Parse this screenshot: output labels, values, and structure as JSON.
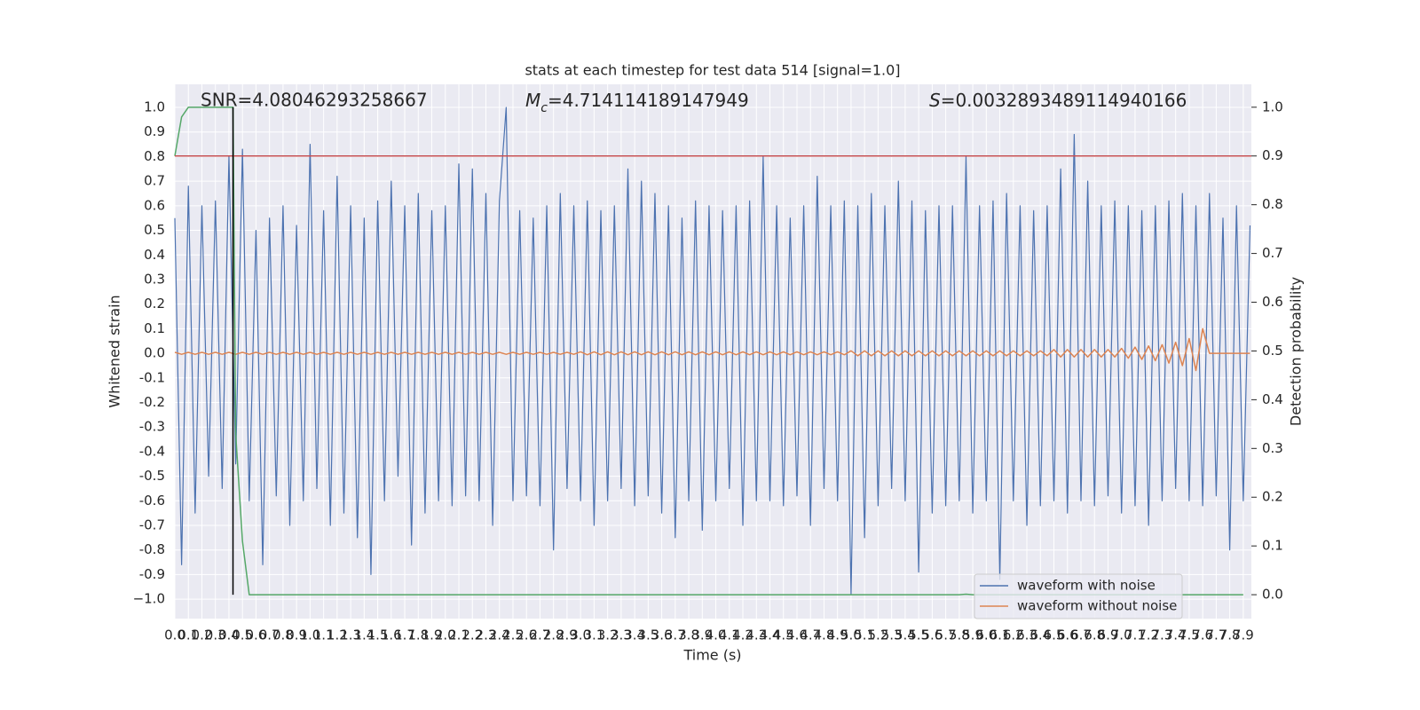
{
  "chart_data": {
    "type": "line",
    "title": "stats at each timestep for test data 514 [signal=1.0]",
    "xlabel": "Time (s)",
    "ylabel": "Whitened strain",
    "y2label": "Detection probability",
    "grid": true,
    "legend": "lower right",
    "xlim": [
      0,
      7.96
    ],
    "ylim": [
      -1.079,
      1.094
    ],
    "y2lim": [
      -0.049,
      1.047
    ],
    "xticks": [
      {
        "value": 0,
        "label": "0.0"
      },
      0.1,
      0.2,
      0.3,
      0.4,
      0.5,
      0.6,
      0.7,
      0.8,
      0.9,
      {
        "value": 1,
        "label": "1.0"
      },
      1.1,
      1.2,
      1.3,
      1.4,
      1.5,
      1.6,
      1.7,
      1.8,
      1.9,
      {
        "value": 2,
        "label": "2.0"
      },
      2.1,
      2.2,
      2.3,
      2.4,
      2.5,
      2.6,
      2.7,
      2.8,
      2.9,
      {
        "value": 3,
        "label": "3.0"
      },
      3.1,
      3.2,
      3.3,
      3.4,
      3.5,
      3.6,
      3.7,
      3.8,
      3.9,
      {
        "value": 4,
        "label": "4.0"
      },
      4.1,
      4.2,
      4.3,
      4.4,
      4.5,
      4.6,
      4.7,
      4.8,
      4.9,
      {
        "value": 5,
        "label": "5.0"
      },
      5.1,
      5.2,
      5.3,
      5.4,
      5.5,
      5.6,
      5.7,
      5.8,
      5.9,
      {
        "value": 6,
        "label": "6.0"
      },
      6.1,
      6.2,
      6.3,
      6.4,
      6.5,
      6.6,
      6.7,
      6.8,
      6.9,
      {
        "value": 7,
        "label": "7.0"
      },
      7.1,
      7.2,
      7.3,
      7.4,
      7.5,
      7.6,
      7.7,
      7.8,
      7.9
    ],
    "yticks": [
      {
        "value": -1,
        "label": "−1.0"
      },
      -0.9,
      -0.8,
      -0.7,
      -0.6,
      -0.5,
      -0.4,
      -0.3,
      -0.2,
      -0.1,
      {
        "value": 0,
        "label": "0.0"
      },
      0.1,
      0.2,
      0.3,
      0.4,
      0.5,
      0.6,
      0.7,
      0.8,
      0.9,
      {
        "value": 1,
        "label": "1.0"
      }
    ],
    "y2ticks": [
      {
        "value": 0,
        "label": "0.0"
      },
      0.1,
      0.2,
      0.3,
      0.4,
      0.5,
      0.6,
      0.7,
      0.8,
      0.9,
      {
        "value": 1,
        "label": "1.0"
      }
    ],
    "x": [
      0,
      0.05,
      0.1,
      0.15,
      0.2,
      0.25,
      0.3,
      0.35,
      0.4,
      0.45,
      0.5,
      0.55,
      0.6,
      0.65,
      0.7,
      0.75,
      0.8,
      0.85,
      0.9,
      0.95,
      1,
      1.05,
      1.1,
      1.15,
      1.2,
      1.25,
      1.3,
      1.35,
      1.4,
      1.45,
      1.5,
      1.55,
      1.6,
      1.65,
      1.7,
      1.75,
      1.8,
      1.85,
      1.9,
      1.95,
      2,
      2.05,
      2.1,
      2.15,
      2.2,
      2.25,
      2.3,
      2.35,
      2.4,
      2.45,
      2.5,
      2.55,
      2.6,
      2.65,
      2.7,
      2.75,
      2.8,
      2.85,
      2.9,
      2.95,
      3,
      3.05,
      3.1,
      3.15,
      3.2,
      3.25,
      3.3,
      3.35,
      3.4,
      3.45,
      3.5,
      3.55,
      3.6,
      3.65,
      3.7,
      3.75,
      3.8,
      3.85,
      3.9,
      3.95,
      4,
      4.05,
      4.1,
      4.15,
      4.2,
      4.25,
      4.3,
      4.35,
      4.4,
      4.45,
      4.5,
      4.55,
      4.6,
      4.65,
      4.7,
      4.75,
      4.8,
      4.85,
      4.9,
      4.95,
      5,
      5.05,
      5.1,
      5.15,
      5.2,
      5.25,
      5.3,
      5.35,
      5.4,
      5.45,
      5.5,
      5.55,
      5.6,
      5.65,
      5.7,
      5.75,
      5.8,
      5.85,
      5.9,
      5.95,
      6,
      6.05,
      6.1,
      6.15,
      6.2,
      6.25,
      6.3,
      6.35,
      6.4,
      6.45,
      6.5,
      6.55,
      6.6,
      6.65,
      6.7,
      6.75,
      6.8,
      6.85,
      6.9,
      6.95,
      7,
      7.05,
      7.1,
      7.15,
      7.2,
      7.25,
      7.3,
      7.35,
      7.4,
      7.45,
      7.5,
      7.55,
      7.6,
      7.65,
      7.7,
      7.75,
      7.8,
      7.85,
      7.9,
      7.95
    ],
    "series": [
      {
        "name": "waveform with noise",
        "color": "#4c72b0",
        "values": [
          0.55,
          -0.86,
          0.68,
          -0.65,
          0.6,
          -0.5,
          0.62,
          -0.55,
          0.8,
          -0.45,
          0.83,
          -0.6,
          0.5,
          -0.86,
          0.55,
          -0.58,
          0.6,
          -0.7,
          0.52,
          -0.6,
          0.85,
          -0.55,
          0.58,
          -0.7,
          0.72,
          -0.65,
          0.6,
          -0.75,
          0.55,
          -0.9,
          0.62,
          -0.6,
          0.7,
          -0.5,
          0.6,
          -0.78,
          0.65,
          -0.65,
          0.58,
          -0.6,
          0.6,
          -0.62,
          0.77,
          -0.58,
          0.75,
          -0.6,
          0.65,
          -0.7,
          0.62,
          1.0,
          -0.6,
          0.58,
          -0.58,
          0.55,
          -0.62,
          0.6,
          -0.8,
          0.65,
          -0.55,
          0.6,
          -0.6,
          0.62,
          -0.7,
          0.58,
          -0.6,
          0.6,
          -0.55,
          0.75,
          -0.62,
          0.7,
          -0.58,
          0.65,
          -0.65,
          0.6,
          -0.75,
          0.55,
          -0.6,
          0.62,
          -0.72,
          0.6,
          -0.6,
          0.58,
          -0.55,
          0.6,
          -0.7,
          0.62,
          -0.6,
          0.8,
          -0.6,
          0.6,
          -0.62,
          0.55,
          -0.58,
          0.6,
          -0.7,
          0.72,
          -0.55,
          0.6,
          -0.6,
          0.62,
          -0.98,
          0.6,
          -0.75,
          0.65,
          -0.62,
          0.6,
          -0.55,
          0.7,
          -0.6,
          0.62,
          -0.89,
          0.58,
          -0.65,
          0.6,
          -0.62,
          0.6,
          -0.6,
          0.8,
          -0.65,
          0.6,
          -0.6,
          0.62,
          -0.92,
          0.65,
          -0.6,
          0.6,
          -0.7,
          0.58,
          -0.62,
          0.6,
          -0.6,
          0.75,
          -0.65,
          0.89,
          -0.6,
          0.7,
          -0.62,
          0.6,
          -0.58,
          0.62,
          -0.65,
          0.6,
          -0.62,
          0.58,
          -0.7,
          0.6,
          -0.6,
          0.62,
          -0.55,
          0.65,
          -0.6,
          0.6,
          -0.62,
          0.65,
          -0.58,
          0.55,
          -0.8,
          0.6,
          -0.6,
          0.52
        ]
      },
      {
        "name": "waveform without noise",
        "color": "#dd8452",
        "values": [
          0.004,
          -0.004,
          0.004,
          -0.004,
          0.004,
          -0.004,
          0.004,
          -0.004,
          0.004,
          -0.004,
          0.004,
          -0.004,
          0.004,
          -0.004,
          0.004,
          -0.004,
          0.004,
          -0.004,
          0.004,
          -0.004,
          0.004,
          -0.004,
          0.004,
          -0.004,
          0.004,
          -0.004,
          0.004,
          -0.004,
          0.004,
          -0.004,
          0.004,
          -0.004,
          0.004,
          -0.004,
          0.004,
          -0.004,
          0.004,
          -0.004,
          0.004,
          -0.004,
          0.004,
          -0.004,
          0.004,
          -0.004,
          0.004,
          -0.004,
          0.004,
          -0.004,
          0.004,
          -0.004,
          0.004,
          -0.004,
          0.004,
          -0.004,
          0.004,
          -0.004,
          0.004,
          -0.004,
          0.004,
          -0.004,
          0.006,
          -0.006,
          0.006,
          -0.006,
          0.006,
          -0.006,
          0.006,
          -0.006,
          0.006,
          -0.006,
          0.006,
          -0.006,
          0.006,
          -0.006,
          0.006,
          -0.006,
          0.006,
          -0.006,
          0.006,
          -0.006,
          0.006,
          -0.006,
          0.006,
          -0.006,
          0.006,
          -0.006,
          0.006,
          -0.006,
          0.006,
          -0.006,
          0.006,
          -0.006,
          0.006,
          -0.006,
          0.006,
          -0.006,
          0.006,
          -0.006,
          0.006,
          -0.006,
          0.01,
          -0.01,
          0.01,
          -0.01,
          0.01,
          -0.01,
          0.01,
          -0.01,
          0.01,
          -0.01,
          0.01,
          -0.01,
          0.01,
          -0.01,
          0.01,
          -0.01,
          0.01,
          -0.01,
          0.01,
          -0.01,
          0.01,
          -0.01,
          0.01,
          -0.01,
          0.01,
          -0.01,
          0.01,
          -0.01,
          0.01,
          -0.01,
          0.015,
          -0.015,
          0.015,
          -0.015,
          0.015,
          -0.015,
          0.015,
          -0.015,
          0.015,
          -0.015,
          0.02,
          -0.02,
          0.025,
          -0.025,
          0.03,
          -0.03,
          0.035,
          -0.04,
          0.045,
          -0.05,
          0.06,
          -0.07,
          0.1,
          0,
          0,
          0,
          0,
          0,
          0,
          0
        ]
      },
      {
        "color": "#55a868",
        "axis": "y2",
        "x": [
          0,
          0.05,
          0.1,
          0.15,
          0.2,
          0.25,
          0.3,
          0.35,
          0.4,
          0.43,
          0.45,
          0.5,
          0.55,
          5.8,
          5.85,
          5.9,
          7.9
        ],
        "values": [
          0.9,
          0.98,
          1.0,
          1.0,
          1.0,
          1.0,
          1.0,
          1.0,
          1.0,
          1.0,
          0.33,
          0.11,
          0,
          0,
          0.001,
          0,
          0
        ]
      }
    ],
    "threshold": {
      "value": 0.9,
      "axis": "y2",
      "color": "#c44e52"
    },
    "marker_line": {
      "x": 0.43,
      "y2": [
        0,
        1
      ],
      "color": "#000000"
    },
    "annotations": [
      {
        "text": "SNR=4.08046293258667"
      },
      {
        "symbol": "M",
        "subscript": "c",
        "text": "=4.714114189147949"
      },
      {
        "symbol": "S",
        "text": "=0.0032893489114940166"
      }
    ]
  }
}
